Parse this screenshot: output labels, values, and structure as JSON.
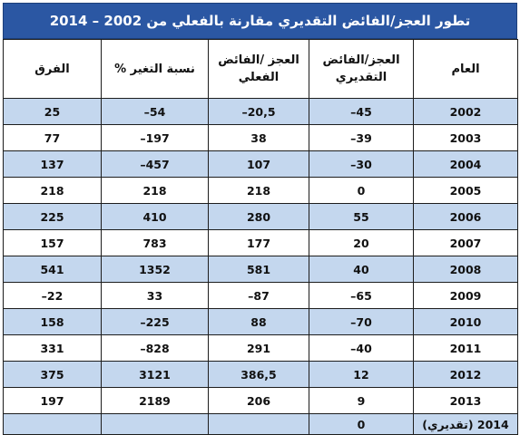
{
  "title": "تطور العجز/الفائض التقديري مقارنة بالفعلي من 2002 – 2014",
  "headers": {
    "year": "العام",
    "estimated": "العجز/الفائض التقديري",
    "actual": "العجز /الفائض الفعلي",
    "change": "نسبة التغير %",
    "diff": "الفرق"
  },
  "rows": [
    {
      "year": "2002",
      "estimated": "45–",
      "actual": "20,5–",
      "change": "54–",
      "diff": "25"
    },
    {
      "year": "2003",
      "estimated": "39–",
      "actual": "38",
      "change": "197–",
      "diff": "77"
    },
    {
      "year": "2004",
      "estimated": "30–",
      "actual": "107",
      "change": "457–",
      "diff": "137"
    },
    {
      "year": "2005",
      "estimated": "0",
      "actual": "218",
      "change": "218",
      "diff": "218"
    },
    {
      "year": "2006",
      "estimated": "55",
      "actual": "280",
      "change": "410",
      "diff": "225"
    },
    {
      "year": "2007",
      "estimated": "20",
      "actual": "177",
      "change": "783",
      "diff": "157"
    },
    {
      "year": "2008",
      "estimated": "40",
      "actual": "581",
      "change": "1352",
      "diff": "541"
    },
    {
      "year": "2009",
      "estimated": "65–",
      "actual": "87–",
      "change": "33",
      "diff": "22–"
    },
    {
      "year": "2010",
      "estimated": "70–",
      "actual": "88",
      "change": "225–",
      "diff": "158"
    },
    {
      "year": "2011",
      "estimated": "40–",
      "actual": "291",
      "change": "828–",
      "diff": "331"
    },
    {
      "year": "2012",
      "estimated": "12",
      "actual": "386,5",
      "change": "3121",
      "diff": "375"
    },
    {
      "year": "2013",
      "estimated": "9",
      "actual": "206",
      "change": "2189",
      "diff": "197"
    },
    {
      "year": "2014 (تقديري)",
      "estimated": "0",
      "actual": "",
      "change": "",
      "diff": ""
    }
  ],
  "colors": {
    "header_bg": "#2b57a3",
    "shade": "#c4d7ee"
  }
}
